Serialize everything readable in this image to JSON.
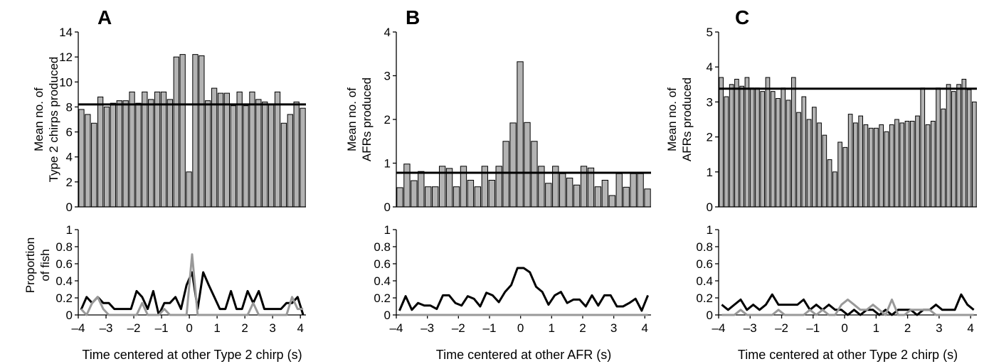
{
  "chart_data": [
    {
      "panel": "A",
      "type": "bar",
      "ylabel": [
        "Mean no. of",
        "Type 2 chirps produced"
      ],
      "ylim": [
        0,
        14
      ],
      "yticks": [
        0,
        2,
        4,
        6,
        8,
        10,
        12,
        14
      ],
      "xlim": [
        -4,
        4.2
      ],
      "bar_x_start": -3.9,
      "bar_x_step": 0.2,
      "values": [
        7.8,
        7.4,
        6.7,
        8.8,
        8.0,
        8.3,
        8.5,
        8.5,
        9.2,
        8.3,
        9.2,
        8.6,
        9.2,
        9.2,
        8.6,
        12.0,
        12.2,
        2.8,
        12.2,
        12.1,
        8.5,
        9.5,
        9.1,
        9.1,
        8.1,
        9.2,
        8.1,
        9.2,
        8.6,
        8.4,
        8.2,
        9.2,
        6.7,
        7.4,
        8.4,
        7.9
      ],
      "mean_line": 8.2
    },
    {
      "panel": "B",
      "type": "bar",
      "ylabel": [
        "Mean no. of",
        "AFRs produced"
      ],
      "ylim": [
        0,
        4
      ],
      "yticks": [
        0,
        1,
        2,
        3,
        4
      ],
      "xlim": [
        -4,
        4.2
      ],
      "bar_x_start": -3.9,
      "bar_x_step": 0.2,
      "values": [
        0.44,
        0.98,
        0.6,
        0.81,
        0.46,
        0.46,
        0.93,
        0.88,
        0.46,
        0.93,
        0.61,
        0.46,
        0.93,
        0.61,
        0.93,
        1.5,
        1.92,
        3.32,
        1.93,
        1.5,
        0.93,
        0.54,
        0.93,
        0.76,
        0.66,
        0.5,
        0.93,
        0.89,
        0.46,
        0.61,
        0.26,
        0.76,
        0.45,
        0.76,
        0.76,
        0.41
      ],
      "mean_line": 0.78
    },
    {
      "panel": "C",
      "type": "bar",
      "ylabel": [
        "Mean no. of",
        "AFRs produced"
      ],
      "ylim": [
        0,
        5
      ],
      "yticks": [
        0,
        1,
        2,
        3,
        4,
        5
      ],
      "xlim": [
        -4,
        4.2
      ],
      "bar_x_start": -3.9,
      "bar_x_step": 0.2,
      "values": [
        3.7,
        3.15,
        3.5,
        3.65,
        3.45,
        3.7,
        3.4,
        3.4,
        3.3,
        3.7,
        3.3,
        3.1,
        3.4,
        3.05,
        3.7,
        2.7,
        3.15,
        2.5,
        2.85,
        2.4,
        2.05,
        1.35,
        1.0,
        1.85,
        1.7,
        2.65,
        2.4,
        2.6,
        2.35,
        2.25,
        2.25,
        2.35,
        2.15,
        2.35,
        2.5,
        2.4,
        2.45,
        2.45,
        2.6,
        3.4,
        2.35,
        2.45,
        3.4,
        2.8,
        3.5,
        3.3,
        3.5,
        3.65,
        3.35,
        3.0
      ],
      "mean_line": 3.38
    },
    {
      "panel": "A-lower",
      "type": "line",
      "ylabel": [
        "Proportion",
        "of fish"
      ],
      "xlabel": "Time centered at other Type 2 chirp (s)",
      "ylim": [
        0,
        1
      ],
      "yticks": [
        0,
        0.2,
        0.4,
        0.6,
        0.8,
        1
      ],
      "xlim": [
        -4,
        4.2
      ],
      "xticks": [
        -4,
        -3,
        -2,
        -1,
        0,
        1,
        2,
        3,
        4
      ],
      "series": [
        {
          "color": "#000000",
          "x": [
            -3.9,
            -3.7,
            -3.5,
            -3.3,
            -3.1,
            -2.9,
            -2.7,
            -2.5,
            -2.3,
            -2.1,
            -1.9,
            -1.7,
            -1.5,
            -1.3,
            -1.1,
            -0.9,
            -0.7,
            -0.5,
            -0.3,
            -0.1,
            0.1,
            0.3,
            0.5,
            0.7,
            0.9,
            1.1,
            1.3,
            1.5,
            1.7,
            1.9,
            2.1,
            2.3,
            2.5,
            2.7,
            2.9,
            3.1,
            3.3,
            3.5,
            3.7,
            3.9,
            4.1
          ],
          "y": [
            0.06,
            0.21,
            0.14,
            0.21,
            0.14,
            0.14,
            0.07,
            0.07,
            0.07,
            0.07,
            0.28,
            0.21,
            0.07,
            0.28,
            0.0,
            0.14,
            0.14,
            0.21,
            0.07,
            0.35,
            0.5,
            0.07,
            0.5,
            0.35,
            0.21,
            0.07,
            0.07,
            0.28,
            0.07,
            0.07,
            0.28,
            0.14,
            0.28,
            0.07,
            0.07,
            0.07,
            0.07,
            0.14,
            0.14,
            0.21,
            0.0
          ]
        },
        {
          "color": "#999999",
          "x": [
            -3.9,
            -3.7,
            -3.5,
            -3.3,
            -3.1,
            -2.9,
            -2.7,
            -2.5,
            -2.3,
            -2.1,
            -1.9,
            -1.7,
            -1.5,
            -1.3,
            -1.1,
            -0.9,
            -0.7,
            -0.5,
            -0.3,
            -0.1,
            0.1,
            0.3,
            0.5,
            0.7,
            0.9,
            1.1,
            1.3,
            1.5,
            1.7,
            1.9,
            2.1,
            2.3,
            2.5,
            2.7,
            2.9,
            3.1,
            3.3,
            3.5,
            3.7,
            3.9,
            4.1
          ],
          "y": [
            0.07,
            0.0,
            0.14,
            0.21,
            0.07,
            0.0,
            0.0,
            0.0,
            0.0,
            0.0,
            0.0,
            0.14,
            0.0,
            0.0,
            0.0,
            0.07,
            0.0,
            0.0,
            0.0,
            0.0,
            0.71,
            0.0,
            0.0,
            0.0,
            0.0,
            0.0,
            0.0,
            0.0,
            0.0,
            0.0,
            0.0,
            0.14,
            0.0,
            0.0,
            0.0,
            0.0,
            0.0,
            0.0,
            0.21,
            0.07,
            0.07
          ]
        }
      ]
    },
    {
      "panel": "B-lower",
      "type": "line",
      "xlabel": "Time centered at other AFR (s)",
      "ylim": [
        0,
        1
      ],
      "yticks": [
        0,
        0.2,
        0.4,
        0.6,
        0.8,
        1
      ],
      "xlim": [
        -4,
        4.2
      ],
      "xticks": [
        -4,
        -3,
        -2,
        -1,
        0,
        1,
        2,
        3,
        4
      ],
      "series": [
        {
          "color": "#000000",
          "x": [
            -3.9,
            -3.7,
            -3.5,
            -3.3,
            -3.1,
            -2.9,
            -2.7,
            -2.5,
            -2.3,
            -2.1,
            -1.9,
            -1.7,
            -1.5,
            -1.3,
            -1.1,
            -0.9,
            -0.7,
            -0.5,
            -0.3,
            -0.1,
            0.1,
            0.3,
            0.5,
            0.7,
            0.9,
            1.1,
            1.3,
            1.5,
            1.7,
            1.9,
            2.1,
            2.3,
            2.5,
            2.7,
            2.9,
            3.1,
            3.3,
            3.5,
            3.7,
            3.9,
            4.1
          ],
          "y": [
            0.05,
            0.22,
            0.06,
            0.14,
            0.11,
            0.11,
            0.07,
            0.23,
            0.23,
            0.14,
            0.11,
            0.22,
            0.19,
            0.1,
            0.26,
            0.23,
            0.15,
            0.27,
            0.35,
            0.55,
            0.55,
            0.5,
            0.33,
            0.27,
            0.12,
            0.23,
            0.27,
            0.14,
            0.18,
            0.18,
            0.1,
            0.23,
            0.11,
            0.23,
            0.23,
            0.1,
            0.1,
            0.14,
            0.19,
            0.05,
            0.23
          ]
        },
        {
          "color": "#999999",
          "x": [
            -3.9,
            4.1
          ],
          "y": [
            0.0,
            0.0
          ]
        }
      ]
    },
    {
      "panel": "C-lower",
      "type": "line",
      "xlabel": "Time centered at other Type 2 chirp (s)",
      "ylim": [
        0,
        1
      ],
      "yticks": [
        0,
        0.2,
        0.4,
        0.6,
        0.8,
        1
      ],
      "xlim": [
        -4,
        4.2
      ],
      "xticks": [
        -4,
        -3,
        -2,
        -1,
        0,
        1,
        2,
        3,
        4
      ],
      "series": [
        {
          "color": "#000000",
          "x": [
            -3.9,
            -3.7,
            -3.5,
            -3.3,
            -3.1,
            -2.9,
            -2.7,
            -2.5,
            -2.3,
            -2.1,
            -1.9,
            -1.7,
            -1.5,
            -1.3,
            -1.1,
            -0.9,
            -0.7,
            -0.5,
            -0.3,
            -0.1,
            0.1,
            0.3,
            0.5,
            0.7,
            0.9,
            1.1,
            1.3,
            1.5,
            1.7,
            1.9,
            2.1,
            2.3,
            2.5,
            2.7,
            2.9,
            3.1,
            3.3,
            3.5,
            3.7,
            3.9,
            4.1
          ],
          "y": [
            0.12,
            0.06,
            0.12,
            0.18,
            0.06,
            0.12,
            0.06,
            0.12,
            0.24,
            0.12,
            0.12,
            0.12,
            0.12,
            0.18,
            0.06,
            0.12,
            0.06,
            0.12,
            0.06,
            0.06,
            0.0,
            0.06,
            0.0,
            0.06,
            0.06,
            0.0,
            0.06,
            0.0,
            0.06,
            0.06,
            0.06,
            0.0,
            0.06,
            0.06,
            0.12,
            0.06,
            0.06,
            0.06,
            0.24,
            0.12,
            0.06
          ]
        },
        {
          "color": "#999999",
          "x": [
            -3.9,
            -3.7,
            -3.5,
            -3.3,
            -3.1,
            -2.9,
            -2.7,
            -2.5,
            -2.3,
            -2.1,
            -1.9,
            -1.7,
            -1.5,
            -1.3,
            -1.1,
            -0.9,
            -0.7,
            -0.5,
            -0.3,
            -0.1,
            0.1,
            0.3,
            0.5,
            0.7,
            0.9,
            1.1,
            1.3,
            1.5,
            1.7,
            1.9,
            2.1,
            2.3,
            2.5,
            2.7,
            2.9,
            3.1,
            3.3,
            3.5,
            3.7,
            3.9,
            4.1
          ],
          "y": [
            0.0,
            0.0,
            0.0,
            0.06,
            0.0,
            0.0,
            0.0,
            0.0,
            0.0,
            0.06,
            0.0,
            0.0,
            0.0,
            0.0,
            0.06,
            0.0,
            0.06,
            0.0,
            0.0,
            0.12,
            0.18,
            0.12,
            0.06,
            0.06,
            0.12,
            0.06,
            0.0,
            0.18,
            0.0,
            0.0,
            0.06,
            0.06,
            0.06,
            0.06,
            0.0,
            0.0,
            0.0,
            0.0,
            0.0,
            0.0,
            0.0
          ]
        }
      ]
    }
  ]
}
